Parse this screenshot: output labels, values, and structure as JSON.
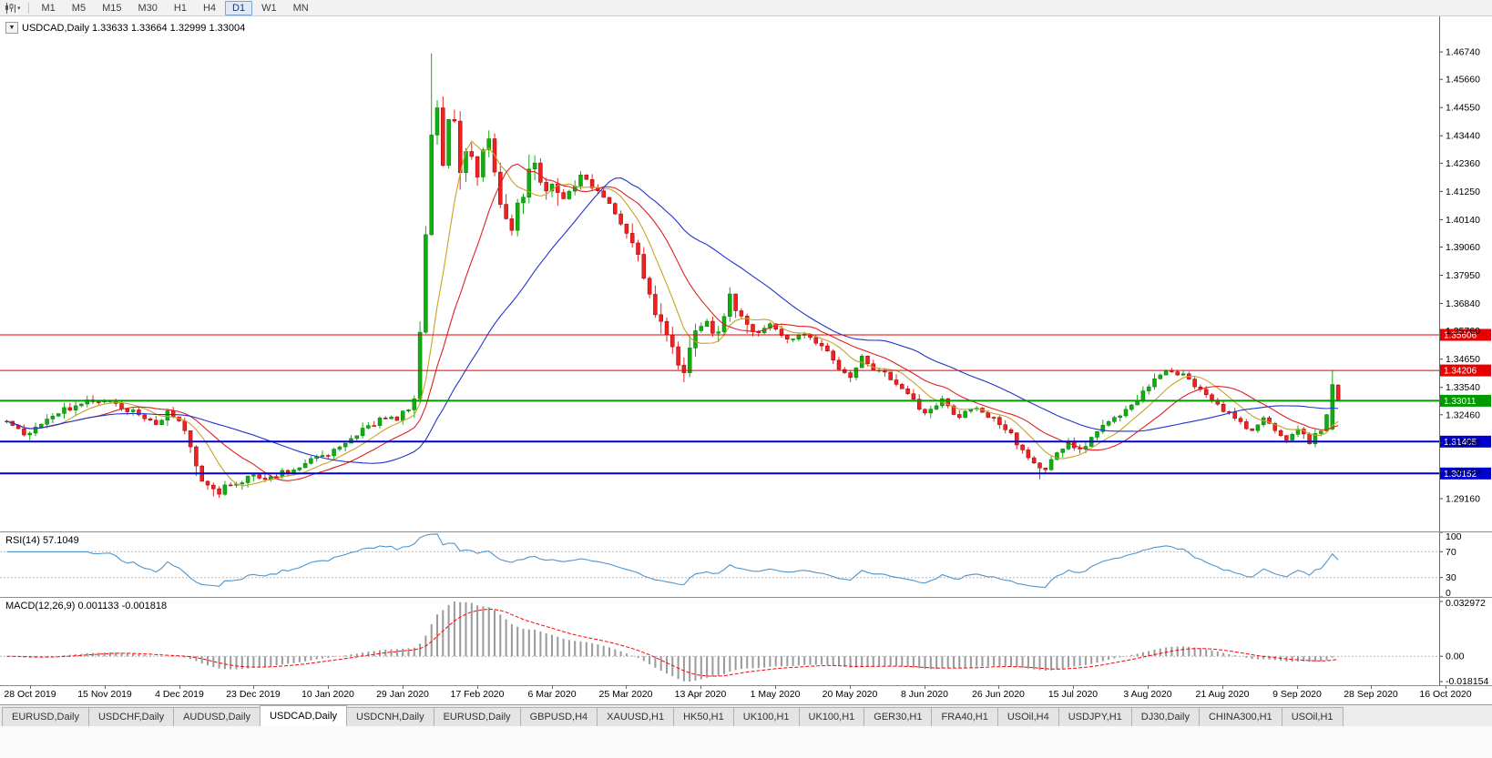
{
  "toolbar": {
    "chart_tool_icon": "candlestick-chart-icon",
    "timeframes": [
      "M1",
      "M5",
      "M15",
      "M30",
      "H1",
      "H4",
      "D1",
      "W1",
      "MN"
    ],
    "active_timeframe": "D1"
  },
  "window": {
    "collapse_glyph": "▼",
    "symbol_header": "USDCAD,Daily 1.33633 1.33664 1.32999 1.33004"
  },
  "tabs": {
    "items": [
      "EURUSD,Daily",
      "USDCHF,Daily",
      "AUDUSD,Daily",
      "USDCAD,Daily",
      "USDCNH,Daily",
      "EURUSD,Daily",
      "GBPUSD,H4",
      "XAUUSD,H1",
      "HK50,H1",
      "UK100,H1",
      "UK100,H1",
      "GER30,H1",
      "FRA40,H1",
      "USOil,H4",
      "USDJPY,H1",
      "DJ30,Daily",
      "CHINA300,H1",
      "USOil,H1"
    ],
    "active_index": 3,
    "scroll_left_icon": "◄",
    "scroll_right_icon": "►"
  },
  "chart_data": {
    "type": "candlestick",
    "symbol": "USDCAD",
    "period": "Daily",
    "current_bar": {
      "open": 1.33633,
      "high": 1.33664,
      "low": 1.32999,
      "close": 1.33004
    },
    "ylim": [
      1.2787,
      1.4814
    ],
    "y_tick_labels": [
      "1.46740",
      "1.45660",
      "1.44550",
      "1.43440",
      "1.42360",
      "1.41250",
      "1.40140",
      "1.39060",
      "1.37950",
      "1.36840",
      "1.35760",
      "1.34650",
      "1.33540",
      "1.32460",
      "1.31350",
      "1.30240",
      "1.29160"
    ],
    "x_labels": [
      "28 Oct 2019",
      "15 Nov 2019",
      "4 Dec 2019",
      "23 Dec 2019",
      "10 Jan 2020",
      "29 Jan 2020",
      "17 Feb 2020",
      "6 Mar 2020",
      "25 Mar 2020",
      "13 Apr 2020",
      "1 May 2020",
      "20 May 2020",
      "8 Jun 2020",
      "26 Jun 2020",
      "15 Jul 2020",
      "3 Aug 2020",
      "21 Aug 2020",
      "9 Sep 2020",
      "28 Sep 2020",
      "16 Oct 2020"
    ],
    "num_candles": 233,
    "anchors": [
      [
        0,
        1.3215
      ],
      [
        3,
        1.3165
      ],
      [
        6,
        1.3205
      ],
      [
        9,
        1.3255
      ],
      [
        13,
        1.329
      ],
      [
        17,
        1.3305
      ],
      [
        20,
        1.328
      ],
      [
        23,
        1.3245
      ],
      [
        26,
        1.3215
      ],
      [
        28,
        1.326
      ],
      [
        30,
        1.3225
      ],
      [
        32,
        1.313
      ],
      [
        34,
        1.2995
      ],
      [
        36,
        1.2945
      ],
      [
        39,
        1.297
      ],
      [
        42,
        1.3
      ],
      [
        45,
        1.299
      ],
      [
        48,
        1.3015
      ],
      [
        51,
        1.304
      ],
      [
        55,
        1.3085
      ],
      [
        59,
        1.313
      ],
      [
        63,
        1.32
      ],
      [
        66,
        1.324
      ],
      [
        68,
        1.323
      ],
      [
        70,
        1.327
      ],
      [
        71,
        1.333
      ],
      [
        72,
        1.356
      ],
      [
        73,
        1.395
      ],
      [
        74,
        1.433
      ],
      [
        75,
        1.448
      ],
      [
        76,
        1.42
      ],
      [
        77,
        1.442
      ],
      [
        78,
        1.438
      ],
      [
        79,
        1.416
      ],
      [
        80,
        1.428
      ],
      [
        82,
        1.42
      ],
      [
        84,
        1.431
      ],
      [
        86,
        1.406
      ],
      [
        88,
        1.399
      ],
      [
        90,
        1.412
      ],
      [
        92,
        1.423
      ],
      [
        94,
        1.416
      ],
      [
        97,
        1.409
      ],
      [
        100,
        1.418
      ],
      [
        103,
        1.413
      ],
      [
        106,
        1.404
      ],
      [
        109,
        1.393
      ],
      [
        111,
        1.38
      ],
      [
        113,
        1.363
      ],
      [
        115,
        1.354
      ],
      [
        117,
        1.347
      ],
      [
        118,
        1.34
      ],
      [
        120,
        1.356
      ],
      [
        122,
        1.36
      ],
      [
        124,
        1.3555
      ],
      [
        126,
        1.3705
      ],
      [
        128,
        1.364
      ],
      [
        130,
        1.357
      ],
      [
        133,
        1.3595
      ],
      [
        136,
        1.3545
      ],
      [
        139,
        1.3565
      ],
      [
        142,
        1.3515
      ],
      [
        145,
        1.343
      ],
      [
        147,
        1.3395
      ],
      [
        149,
        1.348
      ],
      [
        151,
        1.343
      ],
      [
        154,
        1.3385
      ],
      [
        157,
        1.332
      ],
      [
        160,
        1.325
      ],
      [
        163,
        1.3295
      ],
      [
        166,
        1.324
      ],
      [
        169,
        1.3275
      ],
      [
        172,
        1.3225
      ],
      [
        175,
        1.317
      ],
      [
        177,
        1.311
      ],
      [
        179,
        1.305
      ],
      [
        181,
        1.303
      ],
      [
        183,
        1.3095
      ],
      [
        185,
        1.3135
      ],
      [
        187,
        1.3105
      ],
      [
        189,
        1.316
      ],
      [
        191,
        1.3215
      ],
      [
        194,
        1.3245
      ],
      [
        197,
        1.3305
      ],
      [
        200,
        1.3375
      ],
      [
        202,
        1.342
      ],
      [
        205,
        1.34
      ],
      [
        208,
        1.335
      ],
      [
        211,
        1.3285
      ],
      [
        214,
        1.3235
      ],
      [
        217,
        1.319
      ],
      [
        219,
        1.3225
      ],
      [
        221,
        1.318
      ],
      [
        223,
        1.3145
      ],
      [
        225,
        1.3195
      ],
      [
        227,
        1.314
      ],
      [
        229,
        1.3185
      ],
      [
        230,
        1.324
      ],
      [
        231,
        1.3365
      ],
      [
        232,
        1.33
      ]
    ],
    "base_vol": 0.0038,
    "vol_zones": [
      {
        "from": 32,
        "to": 37,
        "vol": 0.006
      },
      {
        "from": 71,
        "to": 96,
        "vol": 0.0115
      },
      {
        "from": 109,
        "to": 121,
        "vol": 0.0075
      },
      {
        "from": 124,
        "to": 129,
        "vol": 0.006
      }
    ],
    "forced_candles": [
      {
        "i": 74,
        "h": 1.4668
      },
      {
        "i": 36,
        "l": 1.2925
      },
      {
        "i": 180,
        "l": 1.2992
      },
      {
        "i": 231,
        "o": 1.319,
        "h": 1.3422,
        "l": 1.3185,
        "c": 1.3365
      },
      {
        "i": 232,
        "o": 1.33633,
        "h": 1.33664,
        "l": 1.32999,
        "c": 1.33004
      }
    ],
    "moving_averages": [
      {
        "period": 8,
        "color": "#c9a227"
      },
      {
        "period": 16,
        "color": "#e02020"
      },
      {
        "period": 34,
        "color": "#2233cc"
      }
    ],
    "horizontal_lines": [
      {
        "price": 1.35606,
        "label": "1.35606",
        "color": "#e80000",
        "width": 1
      },
      {
        "price": 1.34206,
        "label": "1.34206",
        "color": "#e80000",
        "width": 1
      },
      {
        "price": 1.33011,
        "label": "1.33011",
        "color": "#009900",
        "width": 2
      },
      {
        "price": 1.31405,
        "label": "1.31405",
        "color": "#0000cc",
        "width": 2
      },
      {
        "price": 1.30152,
        "label": "1.30152",
        "color": "#0000cc",
        "width": 2
      }
    ],
    "indicators": {
      "rsi_label": "RSI(14) 57.1049",
      "rsi_value": 57.1049,
      "rsi_period": 14,
      "rsi_levels": [
        "100",
        "70",
        "30",
        "0"
      ],
      "macd_label": "MACD(12,26,9) 0.001133 -0.001818",
      "macd_params": [
        12,
        26,
        9
      ],
      "macd_values": [
        0.001133,
        -0.001818
      ],
      "macd_axis_labels": [
        "0.032972",
        "0.00",
        "-0.018154"
      ]
    },
    "colors": {
      "up": "#0faf0f",
      "up_border": "#067806",
      "down": "#ee2222",
      "down_border": "#990000",
      "rsi_line": "#4f94cd",
      "macd_hist": "#9a9a9a",
      "macd_signal": "#ff0000",
      "level_dash": "#b8b8b8",
      "axis_text": "#000000"
    }
  }
}
